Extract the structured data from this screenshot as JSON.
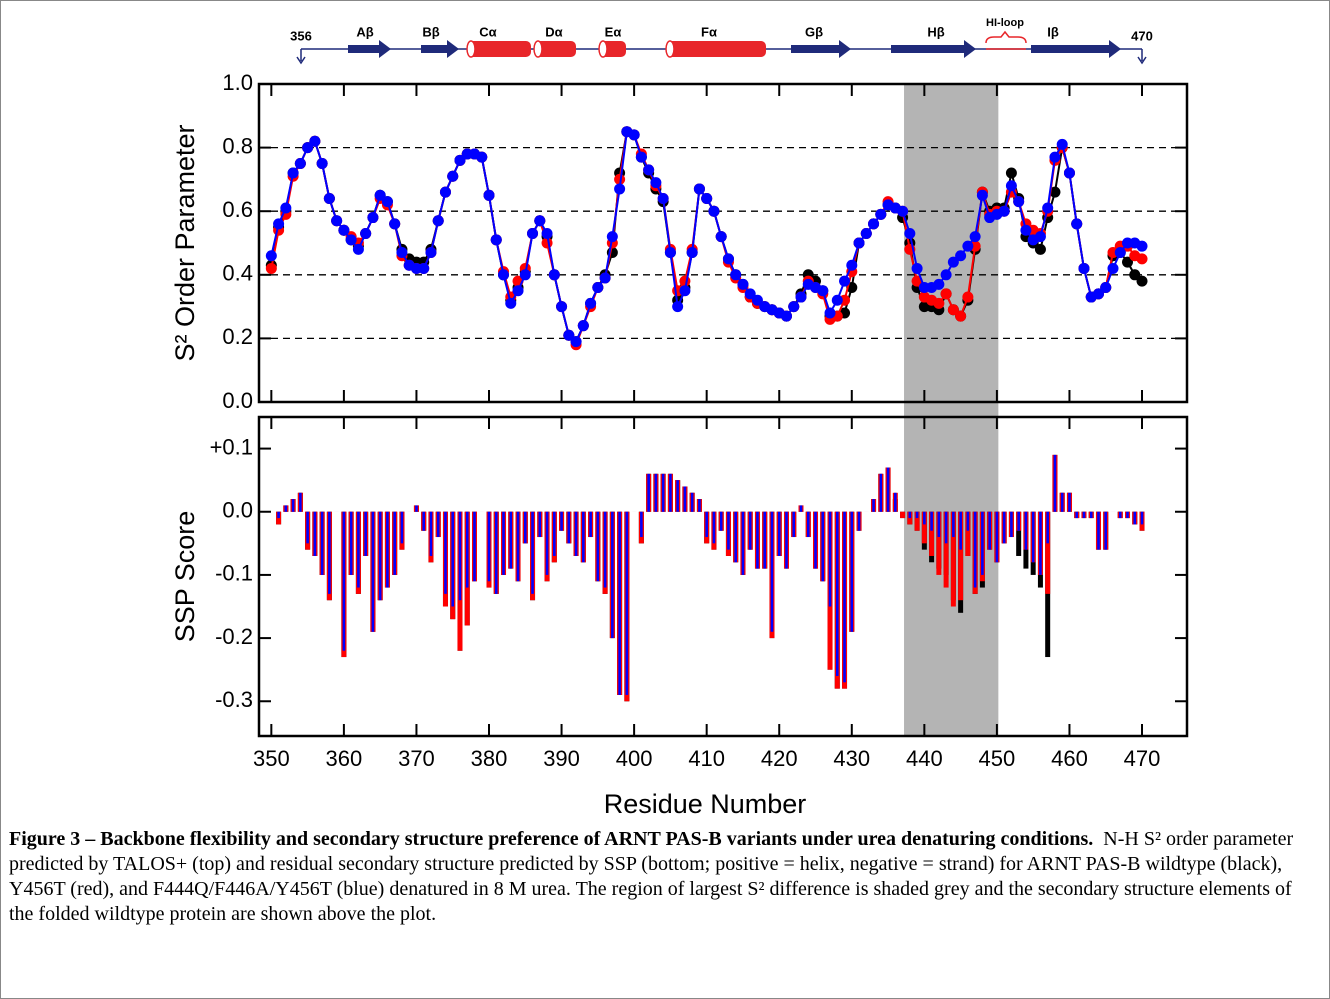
{
  "topology": {
    "start": "356",
    "end": "470",
    "elements": [
      "Aβ",
      "Bβ",
      "Cα",
      "Dα",
      "Eα",
      "Fα",
      "Gβ",
      "Hβ",
      "HI-loop",
      "Iβ"
    ]
  },
  "caption": {
    "title": "Figure 3 – Backbone flexibility and secondary structure preference of ARNT PAS-B variants under urea denaturing conditions.",
    "body": "N-H S² order parameter predicted by TALOS+ (top) and residual secondary structure predicted by SSP (bottom; positive = helix, negative = strand) for ARNT PAS-B wildtype (black), Y456T (red), and F444Q/F446A/Y456T (blue) denatured in 8 M urea. The region of largest S² difference is shaded grey and the secondary structure elements of the folded wildtype protein are shown above the plot."
  },
  "chart_data": [
    {
      "type": "line",
      "y_label": "S² Order Parameter",
      "x": [
        350,
        351,
        352,
        353,
        354,
        355,
        356,
        357,
        358,
        359,
        360,
        361,
        362,
        363,
        364,
        365,
        366,
        367,
        368,
        369,
        370,
        371,
        372,
        373,
        374,
        375,
        376,
        377,
        378,
        379,
        380,
        381,
        382,
        383,
        384,
        385,
        386,
        387,
        388,
        389,
        390,
        391,
        392,
        393,
        394,
        395,
        396,
        397,
        398,
        399,
        400,
        401,
        402,
        403,
        404,
        405,
        406,
        407,
        408,
        409,
        410,
        411,
        412,
        413,
        414,
        415,
        416,
        417,
        418,
        419,
        420,
        421,
        422,
        423,
        424,
        425,
        426,
        427,
        428,
        429,
        430,
        431,
        432,
        433,
        434,
        435,
        436,
        437,
        438,
        439,
        440,
        441,
        442,
        443,
        444,
        445,
        446,
        447,
        448,
        449,
        450,
        451,
        452,
        453,
        454,
        455,
        456,
        457,
        458,
        459,
        460,
        461,
        462,
        463,
        464,
        465,
        466,
        467,
        468,
        469,
        470
      ],
      "xlim": [
        348.3,
        476.2
      ],
      "xticks": [
        350,
        360,
        370,
        380,
        390,
        400,
        410,
        420,
        430,
        440,
        450,
        460,
        470
      ],
      "ylim": [
        0,
        1
      ],
      "yticks": [
        {
          "value": 0,
          "label": "0.0"
        },
        {
          "value": 0.2,
          "label": "0.2"
        },
        {
          "value": 0.4,
          "label": "0.4"
        },
        {
          "value": 0.6,
          "label": "0.6"
        },
        {
          "value": 0.8,
          "label": "0.8"
        },
        {
          "value": 1,
          "label": "1.0"
        }
      ],
      "grid": true,
      "highlight": [
        437.2,
        450.2
      ],
      "series": [
        {
          "color": "#000000",
          "values": [
            0.43,
            0.55,
            0.6,
            0.72,
            0.75,
            0.8,
            0.82,
            0.75,
            0.64,
            0.57,
            0.54,
            0.51,
            0.49,
            0.53,
            0.58,
            0.65,
            0.63,
            0.56,
            0.48,
            0.45,
            0.44,
            0.44,
            0.48,
            0.57,
            0.66,
            0.71,
            0.76,
            0.78,
            0.78,
            0.77,
            0.65,
            0.51,
            0.4,
            0.32,
            0.36,
            0.41,
            0.53,
            0.57,
            0.52,
            0.4,
            0.3,
            0.21,
            0.19,
            0.24,
            0.31,
            0.36,
            0.4,
            0.47,
            0.72,
            0.85,
            0.84,
            0.77,
            0.72,
            0.67,
            0.63,
            0.47,
            0.32,
            0.36,
            0.47,
            0.67,
            0.64,
            0.6,
            0.52,
            0.45,
            0.4,
            0.37,
            0.33,
            0.31,
            0.3,
            0.29,
            0.28,
            0.27,
            0.3,
            0.34,
            0.4,
            0.38,
            0.35,
            0.27,
            0.27,
            0.28,
            0.36,
            0.5,
            0.53,
            0.56,
            0.59,
            0.62,
            0.61,
            0.58,
            0.5,
            0.36,
            0.3,
            0.3,
            0.29,
            0.34,
            0.29,
            0.27,
            0.32,
            0.48,
            0.66,
            0.6,
            0.61,
            0.61,
            0.72,
            0.64,
            0.52,
            0.5,
            0.48,
            0.58,
            0.66,
            0.8,
            0.72,
            0.56,
            0.42,
            0.33,
            0.34,
            0.36,
            0.46,
            0.47,
            0.44,
            0.4,
            0.38
          ]
        },
        {
          "color": "#ff0000",
          "values": [
            0.42,
            0.54,
            0.59,
            0.71,
            0.75,
            0.8,
            0.82,
            0.75,
            0.64,
            0.57,
            0.54,
            0.52,
            0.5,
            0.53,
            0.58,
            0.64,
            0.62,
            0.56,
            0.46,
            0.43,
            0.42,
            0.42,
            0.47,
            0.57,
            0.66,
            0.71,
            0.76,
            0.78,
            0.78,
            0.77,
            0.65,
            0.51,
            0.41,
            0.33,
            0.38,
            0.42,
            0.53,
            0.57,
            0.5,
            0.4,
            0.3,
            0.21,
            0.18,
            0.24,
            0.3,
            0.36,
            0.39,
            0.5,
            0.7,
            0.85,
            0.84,
            0.78,
            0.73,
            0.68,
            0.64,
            0.48,
            0.35,
            0.38,
            0.48,
            0.67,
            0.64,
            0.6,
            0.52,
            0.44,
            0.39,
            0.36,
            0.33,
            0.31,
            0.3,
            0.29,
            0.28,
            0.27,
            0.3,
            0.33,
            0.38,
            0.36,
            0.34,
            0.26,
            0.27,
            0.32,
            0.41,
            0.5,
            0.53,
            0.56,
            0.59,
            0.63,
            0.61,
            0.6,
            0.48,
            0.38,
            0.33,
            0.32,
            0.31,
            0.34,
            0.29,
            0.27,
            0.33,
            0.49,
            0.66,
            0.59,
            0.6,
            0.6,
            0.66,
            0.63,
            0.56,
            0.54,
            0.53,
            0.6,
            0.76,
            0.8,
            0.72,
            0.56,
            0.42,
            0.33,
            0.34,
            0.36,
            0.47,
            0.49,
            0.49,
            0.46,
            0.45
          ]
        },
        {
          "color": "#0000ff",
          "values": [
            0.46,
            0.56,
            0.61,
            0.72,
            0.75,
            0.8,
            0.82,
            0.75,
            0.64,
            0.57,
            0.54,
            0.51,
            0.48,
            0.53,
            0.58,
            0.65,
            0.63,
            0.56,
            0.47,
            0.43,
            0.42,
            0.42,
            0.47,
            0.57,
            0.66,
            0.71,
            0.76,
            0.78,
            0.78,
            0.77,
            0.65,
            0.51,
            0.4,
            0.31,
            0.35,
            0.4,
            0.53,
            0.57,
            0.53,
            0.4,
            0.3,
            0.21,
            0.19,
            0.24,
            0.31,
            0.36,
            0.39,
            0.52,
            0.67,
            0.85,
            0.84,
            0.77,
            0.73,
            0.69,
            0.64,
            0.47,
            0.3,
            0.35,
            0.47,
            0.67,
            0.64,
            0.6,
            0.52,
            0.45,
            0.4,
            0.37,
            0.34,
            0.32,
            0.3,
            0.29,
            0.28,
            0.27,
            0.3,
            0.33,
            0.37,
            0.36,
            0.35,
            0.28,
            0.32,
            0.38,
            0.43,
            0.5,
            0.53,
            0.56,
            0.59,
            0.62,
            0.61,
            0.6,
            0.53,
            0.42,
            0.36,
            0.36,
            0.37,
            0.4,
            0.44,
            0.46,
            0.49,
            0.52,
            0.65,
            0.58,
            0.59,
            0.6,
            0.68,
            0.63,
            0.54,
            0.51,
            0.52,
            0.61,
            0.77,
            0.81,
            0.72,
            0.56,
            0.42,
            0.33,
            0.34,
            0.36,
            0.42,
            0.47,
            0.5,
            0.5,
            0.49
          ]
        }
      ]
    },
    {
      "type": "bar",
      "y_label": "SSP Score",
      "x_label": "Residue Number",
      "x": [
        351,
        352,
        353,
        354,
        355,
        356,
        357,
        358,
        359,
        360,
        361,
        362,
        363,
        364,
        365,
        366,
        367,
        368,
        369,
        370,
        371,
        372,
        373,
        374,
        375,
        376,
        377,
        378,
        379,
        380,
        381,
        382,
        383,
        384,
        385,
        386,
        387,
        388,
        389,
        390,
        391,
        392,
        393,
        394,
        395,
        396,
        397,
        398,
        399,
        400,
        401,
        402,
        403,
        404,
        405,
        406,
        407,
        408,
        409,
        410,
        411,
        412,
        413,
        414,
        415,
        416,
        417,
        418,
        419,
        420,
        421,
        422,
        423,
        424,
        425,
        426,
        427,
        428,
        429,
        430,
        431,
        432,
        433,
        434,
        435,
        436,
        437,
        438,
        439,
        440,
        441,
        442,
        443,
        444,
        445,
        446,
        447,
        448,
        449,
        450,
        451,
        452,
        453,
        454,
        455,
        456,
        457,
        458,
        459,
        460,
        461,
        462,
        463,
        464,
        465,
        466,
        467,
        468,
        469,
        470
      ],
      "xlim": [
        348.3,
        476.2
      ],
      "xticks": [
        350,
        360,
        370,
        380,
        390,
        400,
        410,
        420,
        430,
        440,
        450,
        460,
        470
      ],
      "ylim": [
        -0.355,
        0.15
      ],
      "yticks": [
        {
          "value": 0.1,
          "label": "+0.1"
        },
        {
          "value": 0,
          "label": "0.0"
        },
        {
          "value": -0.1,
          "label": "-0.1"
        },
        {
          "value": -0.2,
          "label": "-0.2"
        },
        {
          "value": -0.3,
          "label": "-0.3"
        }
      ],
      "grid": false,
      "series": [
        {
          "color": "#000000",
          "values": [
            -0.02,
            0.01,
            0.02,
            0.03,
            -0.06,
            -0.07,
            -0.1,
            -0.14,
            0.0,
            -0.23,
            -0.1,
            -0.13,
            -0.07,
            -0.19,
            -0.14,
            -0.12,
            -0.1,
            -0.06,
            0.0,
            0.01,
            -0.03,
            -0.08,
            -0.04,
            -0.15,
            -0.17,
            -0.22,
            -0.18,
            -0.11,
            0.0,
            -0.12,
            -0.13,
            -0.1,
            -0.09,
            -0.11,
            -0.05,
            -0.14,
            -0.04,
            -0.11,
            -0.08,
            -0.03,
            -0.05,
            -0.07,
            -0.08,
            -0.04,
            -0.11,
            -0.13,
            -0.2,
            -0.29,
            -0.3,
            0.0,
            -0.05,
            0.06,
            0.06,
            0.06,
            0.06,
            0.05,
            0.04,
            0.03,
            0.02,
            -0.05,
            -0.06,
            -0.03,
            -0.07,
            -0.08,
            -0.1,
            -0.06,
            -0.09,
            -0.09,
            -0.2,
            -0.07,
            -0.09,
            -0.04,
            0.01,
            -0.04,
            -0.09,
            -0.11,
            -0.25,
            -0.28,
            -0.28,
            -0.19,
            -0.03,
            0.0,
            0.02,
            0.06,
            0.07,
            0.02,
            -0.01,
            -0.02,
            -0.03,
            -0.06,
            -0.08,
            -0.09,
            -0.1,
            -0.14,
            -0.16,
            -0.07,
            -0.13,
            -0.12,
            -0.06,
            -0.08,
            -0.05,
            -0.04,
            -0.07,
            -0.09,
            -0.1,
            -0.12,
            -0.23,
            0.09,
            0.03,
            0.03,
            -0.01,
            -0.01,
            -0.01,
            -0.06,
            -0.06,
            0.0,
            -0.01,
            -0.01,
            -0.02,
            -0.03
          ]
        },
        {
          "color": "#ff0000",
          "values": [
            -0.02,
            0.01,
            0.02,
            0.03,
            -0.06,
            -0.07,
            -0.1,
            -0.14,
            0.0,
            -0.23,
            -0.1,
            -0.13,
            -0.07,
            -0.19,
            -0.14,
            -0.12,
            -0.1,
            -0.06,
            0.0,
            0.01,
            -0.03,
            -0.08,
            -0.04,
            -0.15,
            -0.17,
            -0.22,
            -0.18,
            -0.11,
            0.0,
            -0.12,
            -0.13,
            -0.1,
            -0.09,
            -0.11,
            -0.05,
            -0.14,
            -0.04,
            -0.11,
            -0.08,
            -0.03,
            -0.05,
            -0.07,
            -0.08,
            -0.04,
            -0.11,
            -0.13,
            -0.2,
            -0.29,
            -0.3,
            0.0,
            -0.05,
            0.06,
            0.06,
            0.06,
            0.06,
            0.05,
            0.04,
            0.03,
            0.02,
            -0.05,
            -0.06,
            -0.03,
            -0.07,
            -0.08,
            -0.1,
            -0.06,
            -0.09,
            -0.09,
            -0.2,
            -0.07,
            -0.09,
            -0.04,
            0.01,
            -0.04,
            -0.09,
            -0.11,
            -0.25,
            -0.28,
            -0.28,
            -0.19,
            -0.03,
            0.0,
            0.02,
            0.06,
            0.07,
            0.03,
            -0.01,
            -0.02,
            -0.03,
            -0.05,
            -0.07,
            -0.1,
            -0.12,
            -0.15,
            -0.14,
            -0.07,
            -0.13,
            -0.11,
            -0.06,
            -0.08,
            -0.05,
            -0.04,
            -0.03,
            -0.06,
            -0.08,
            -0.1,
            -0.13,
            0.09,
            0.03,
            0.03,
            -0.01,
            -0.01,
            -0.01,
            -0.06,
            -0.06,
            0.0,
            -0.01,
            -0.01,
            -0.02,
            -0.03
          ]
        },
        {
          "color": "#0000ff",
          "values": [
            -0.01,
            0.01,
            0.02,
            0.03,
            -0.05,
            -0.07,
            -0.1,
            -0.13,
            0.0,
            -0.22,
            -0.1,
            -0.12,
            -0.07,
            -0.19,
            -0.14,
            -0.12,
            -0.1,
            -0.05,
            0.0,
            0.01,
            -0.03,
            -0.07,
            -0.04,
            -0.13,
            -0.15,
            -0.14,
            -0.12,
            -0.11,
            0.0,
            -0.11,
            -0.13,
            -0.1,
            -0.09,
            -0.11,
            -0.05,
            -0.13,
            -0.04,
            -0.1,
            -0.07,
            -0.03,
            -0.05,
            -0.07,
            -0.08,
            -0.04,
            -0.11,
            -0.12,
            -0.2,
            -0.29,
            -0.29,
            0.0,
            -0.04,
            0.06,
            0.06,
            0.06,
            0.06,
            0.05,
            0.04,
            0.03,
            0.02,
            -0.04,
            -0.05,
            -0.03,
            -0.06,
            -0.08,
            -0.1,
            -0.06,
            -0.09,
            -0.09,
            -0.19,
            -0.07,
            -0.09,
            -0.04,
            0.01,
            -0.04,
            -0.09,
            -0.11,
            -0.15,
            -0.26,
            -0.27,
            -0.19,
            -0.03,
            0.0,
            0.02,
            0.06,
            0.07,
            0.03,
            0.0,
            -0.01,
            -0.01,
            -0.02,
            -0.03,
            -0.04,
            -0.05,
            -0.04,
            -0.06,
            -0.03,
            -0.12,
            -0.1,
            -0.06,
            -0.08,
            -0.05,
            -0.04,
            -0.03,
            -0.06,
            -0.08,
            -0.1,
            -0.05,
            0.09,
            0.03,
            0.03,
            -0.01,
            -0.01,
            -0.01,
            -0.06,
            -0.06,
            0.0,
            -0.01,
            -0.01,
            -0.02,
            -0.02
          ]
        }
      ]
    }
  ]
}
